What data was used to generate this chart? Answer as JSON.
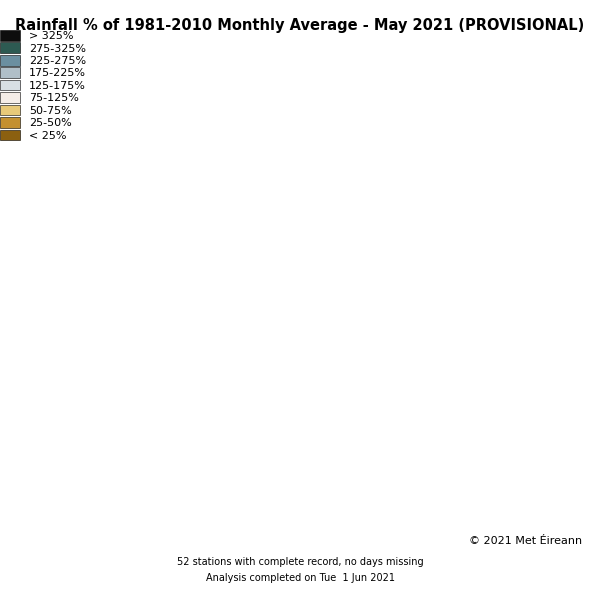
{
  "title": "Rainfall % of 1981-2010 Monthly Average - May 2021 (PROVISIONAL)",
  "copyright": "© 2021 Met Éireann",
  "footnote1": "52 stations with complete record, no days missing",
  "footnote2": "Analysis completed on Tue  1 Jun 2021",
  "legend_labels": [
    "> 325%",
    "275-325%",
    "225-275%",
    "175-225%",
    "125-175%",
    "75-125%",
    "50-75%",
    "25-50%",
    "< 25%"
  ],
  "legend_colors": [
    "#0d0d0d",
    "#2d5a52",
    "#6b8fa0",
    "#b0bfc8",
    "#d8dfe4",
    "#f5ede8",
    "#e8c97a",
    "#c49030",
    "#8b6010"
  ],
  "background_color": "#ffffff",
  "title_fontsize": 10.5,
  "legend_fontsize": 8,
  "map_extent": [
    -10.7,
    -5.8,
    51.2,
    55.6
  ]
}
